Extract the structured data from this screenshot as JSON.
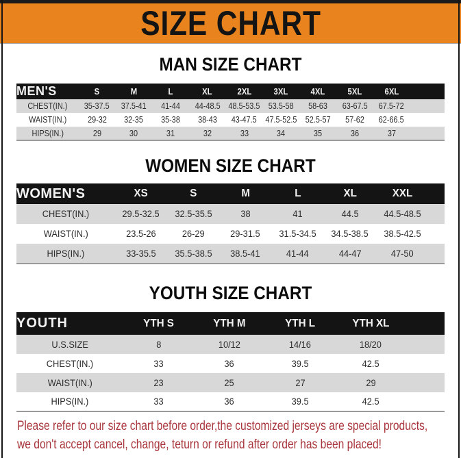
{
  "banner": {
    "title": "SIZE CHART"
  },
  "colors": {
    "banner_orange": "#E8831E",
    "header_black": "#141414",
    "row_gray": "#D8D8D8",
    "disclaimer_red": "#A8363C"
  },
  "sections": [
    {
      "heading": "MAN SIZE CHART",
      "header_label": "MEN'S",
      "columns": [
        "S",
        "M",
        "L",
        "XL",
        "2XL",
        "3XL",
        "4XL",
        "5XL",
        "6XL"
      ],
      "rows": [
        {
          "label": "CHEST(IN.)",
          "values": [
            "35-37.5",
            "37.5-41",
            "41-44",
            "44-48.5",
            "48.5-53.5",
            "53.5-58",
            "58-63",
            "63-67.5",
            "67.5-72"
          ]
        },
        {
          "label": "WAIST(IN.)",
          "values": [
            "29-32",
            "32-35",
            "35-38",
            "38-43",
            "43-47.5",
            "47.5-52.5",
            "52.5-57",
            "57-62",
            "62-66.5"
          ]
        },
        {
          "label": "HIPS(IN.)",
          "values": [
            "29",
            "30",
            "31",
            "32",
            "33",
            "34",
            "35",
            "36",
            "37"
          ]
        }
      ]
    },
    {
      "heading": "WOMEN SIZE CHART",
      "header_label": "WOMEN'S",
      "columns": [
        "XS",
        "S",
        "M",
        "L",
        "XL",
        "XXL"
      ],
      "rows": [
        {
          "label": "CHEST(IN.)",
          "values": [
            "29.5-32.5",
            "32.5-35.5",
            "38",
            "41",
            "44.5",
            "44.5-48.5"
          ]
        },
        {
          "label": "WAIST(IN.)",
          "values": [
            "23.5-26",
            "26-29",
            "29-31.5",
            "31.5-34.5",
            "34.5-38.5",
            "38.5-42.5"
          ]
        },
        {
          "label": "HIPS(IN.)",
          "values": [
            "33-35.5",
            "35.5-38.5",
            "38.5-41",
            "41-44",
            "44-47",
            "47-50"
          ]
        }
      ]
    },
    {
      "heading": "YOUTH SIZE CHART",
      "header_label": "YOUTH",
      "columns": [
        "YTH S",
        "YTH M",
        "YTH L",
        "YTH XL"
      ],
      "rows": [
        {
          "label": "U.S.SIZE",
          "values": [
            "8",
            "10/12",
            "14/16",
            "18/20"
          ]
        },
        {
          "label": "CHEST(IN.)",
          "values": [
            "33",
            "36",
            "39.5",
            "42.5"
          ]
        },
        {
          "label": "WAIST(IN.)",
          "values": [
            "23",
            "25",
            "27",
            "29"
          ]
        },
        {
          "label": "HIPS(IN.)",
          "values": [
            "33",
            "36",
            "39.5",
            "42.5"
          ]
        }
      ]
    }
  ],
  "footer": {
    "line1": "Please refer to our size chart before order,the customized jerseys are special products,",
    "line2": "we don't accept cancel, change, teturn or refund after order has been placed!"
  }
}
